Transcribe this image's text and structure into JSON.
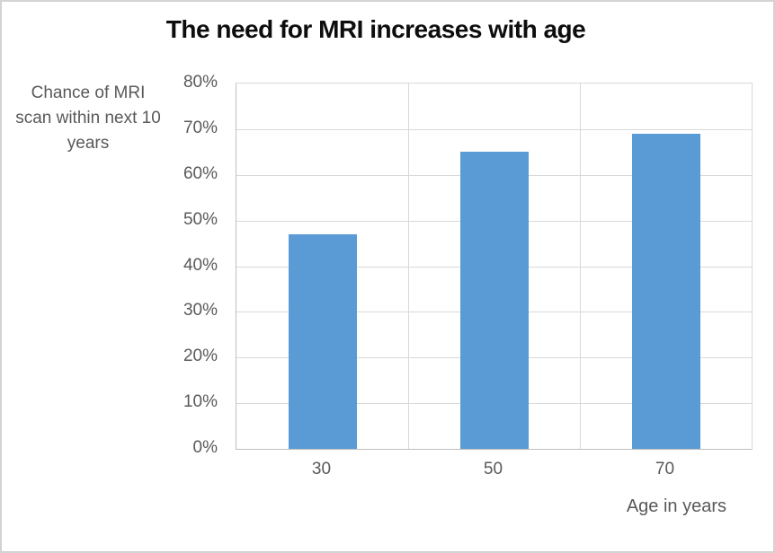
{
  "chart_data": {
    "type": "bar",
    "title": "The need for MRI increases with age",
    "categories": [
      "30",
      "50",
      "70"
    ],
    "values": [
      47,
      65,
      69
    ],
    "xlabel": "Age in years",
    "ylabel": "Chance of MRI scan within next 10 years",
    "ylim": [
      0,
      80
    ],
    "ytick_step": 10,
    "ytick_labels": [
      "0%",
      "10%",
      "20%",
      "30%",
      "40%",
      "50%",
      "60%",
      "70%",
      "80%"
    ],
    "grid": true,
    "legend": false,
    "bar_color": "#5B9BD5",
    "text_color": "#595959",
    "title_color": "#0d0d0d",
    "gridline_color": "#D9D9D9",
    "axis_color": "#BFBFBF"
  }
}
